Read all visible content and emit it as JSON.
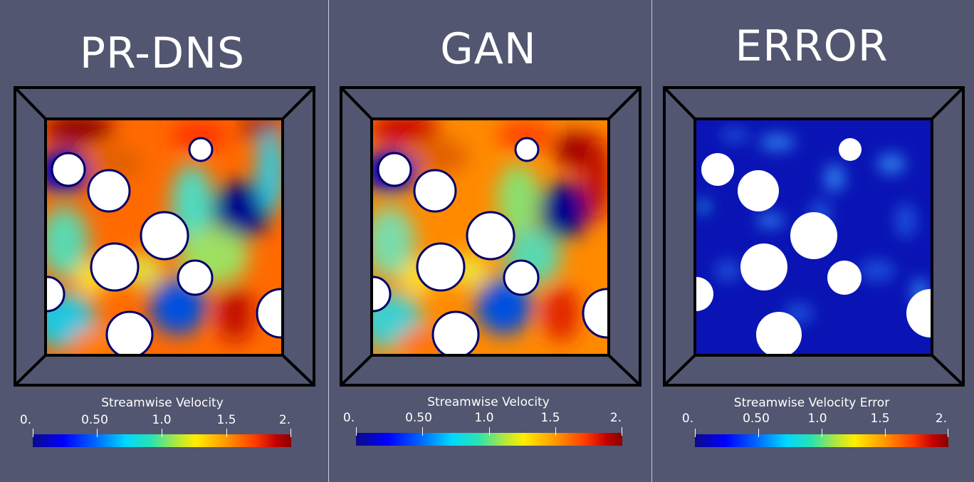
{
  "panels": [
    {
      "title": "PR-DNS",
      "colorbar_title": "Streamwise Velocity",
      "ticks": [
        "0.",
        "0.50",
        "1.0",
        "1.5",
        "2."
      ],
      "field": "velocity"
    },
    {
      "title": "GAN",
      "colorbar_title": "Streamwise Velocity",
      "ticks": [
        "0.",
        "0.50",
        "1.0",
        "1.5",
        "2."
      ],
      "field": "velocity"
    },
    {
      "title": "ERROR",
      "colorbar_title": "Streamwise Velocity Error",
      "ticks": [
        "0.",
        "0.50",
        "1.0",
        "1.5",
        "2."
      ],
      "field": "error"
    }
  ],
  "colors": {
    "background": "#525670",
    "frame": "#000000",
    "particle": "#ffffff"
  },
  "colormap": "jet",
  "colorbar_range": [
    0,
    2
  ]
}
